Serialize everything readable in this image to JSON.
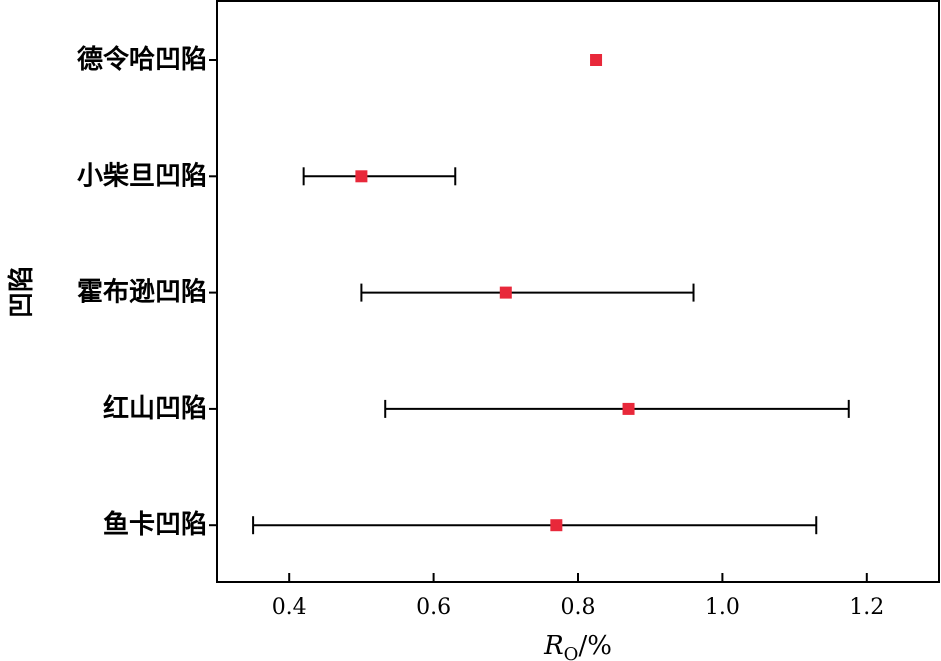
{
  "chart_data": {
    "type": "scatter",
    "orientation": "horizontal",
    "title": "",
    "xlabel": {
      "main": "R",
      "sub": "O",
      "unit": "/%"
    },
    "ylabel": "凹陷",
    "xlim": [
      0.3,
      1.3
    ],
    "xticks": [
      "0.4",
      "0.6",
      "0.8",
      "1.0",
      "1.2"
    ],
    "xtick_values": [
      0.4,
      0.6,
      0.8,
      1.0,
      1.2
    ],
    "grid": false,
    "categories": [
      "德令哈凹陷",
      "小柴旦凹陷",
      "霍布逊凹陷",
      "红山凹陷",
      "鱼卡凹陷"
    ],
    "points": [
      {
        "category": "德令哈凹陷",
        "value": 0.825,
        "min": null,
        "max": null
      },
      {
        "category": "小柴旦凹陷",
        "value": 0.5,
        "min": 0.42,
        "max": 0.63
      },
      {
        "category": "霍布逊凹陷",
        "value": 0.7,
        "min": 0.5,
        "max": 0.96
      },
      {
        "category": "红山凹陷",
        "value": 0.87,
        "min": 0.533,
        "max": 1.175
      },
      {
        "category": "鱼卡凹陷",
        "value": 0.77,
        "min": 0.35,
        "max": 1.13
      }
    ],
    "colors": {
      "marker": "#e8283a",
      "errorbar": "#000000",
      "axis": "#000000"
    }
  }
}
